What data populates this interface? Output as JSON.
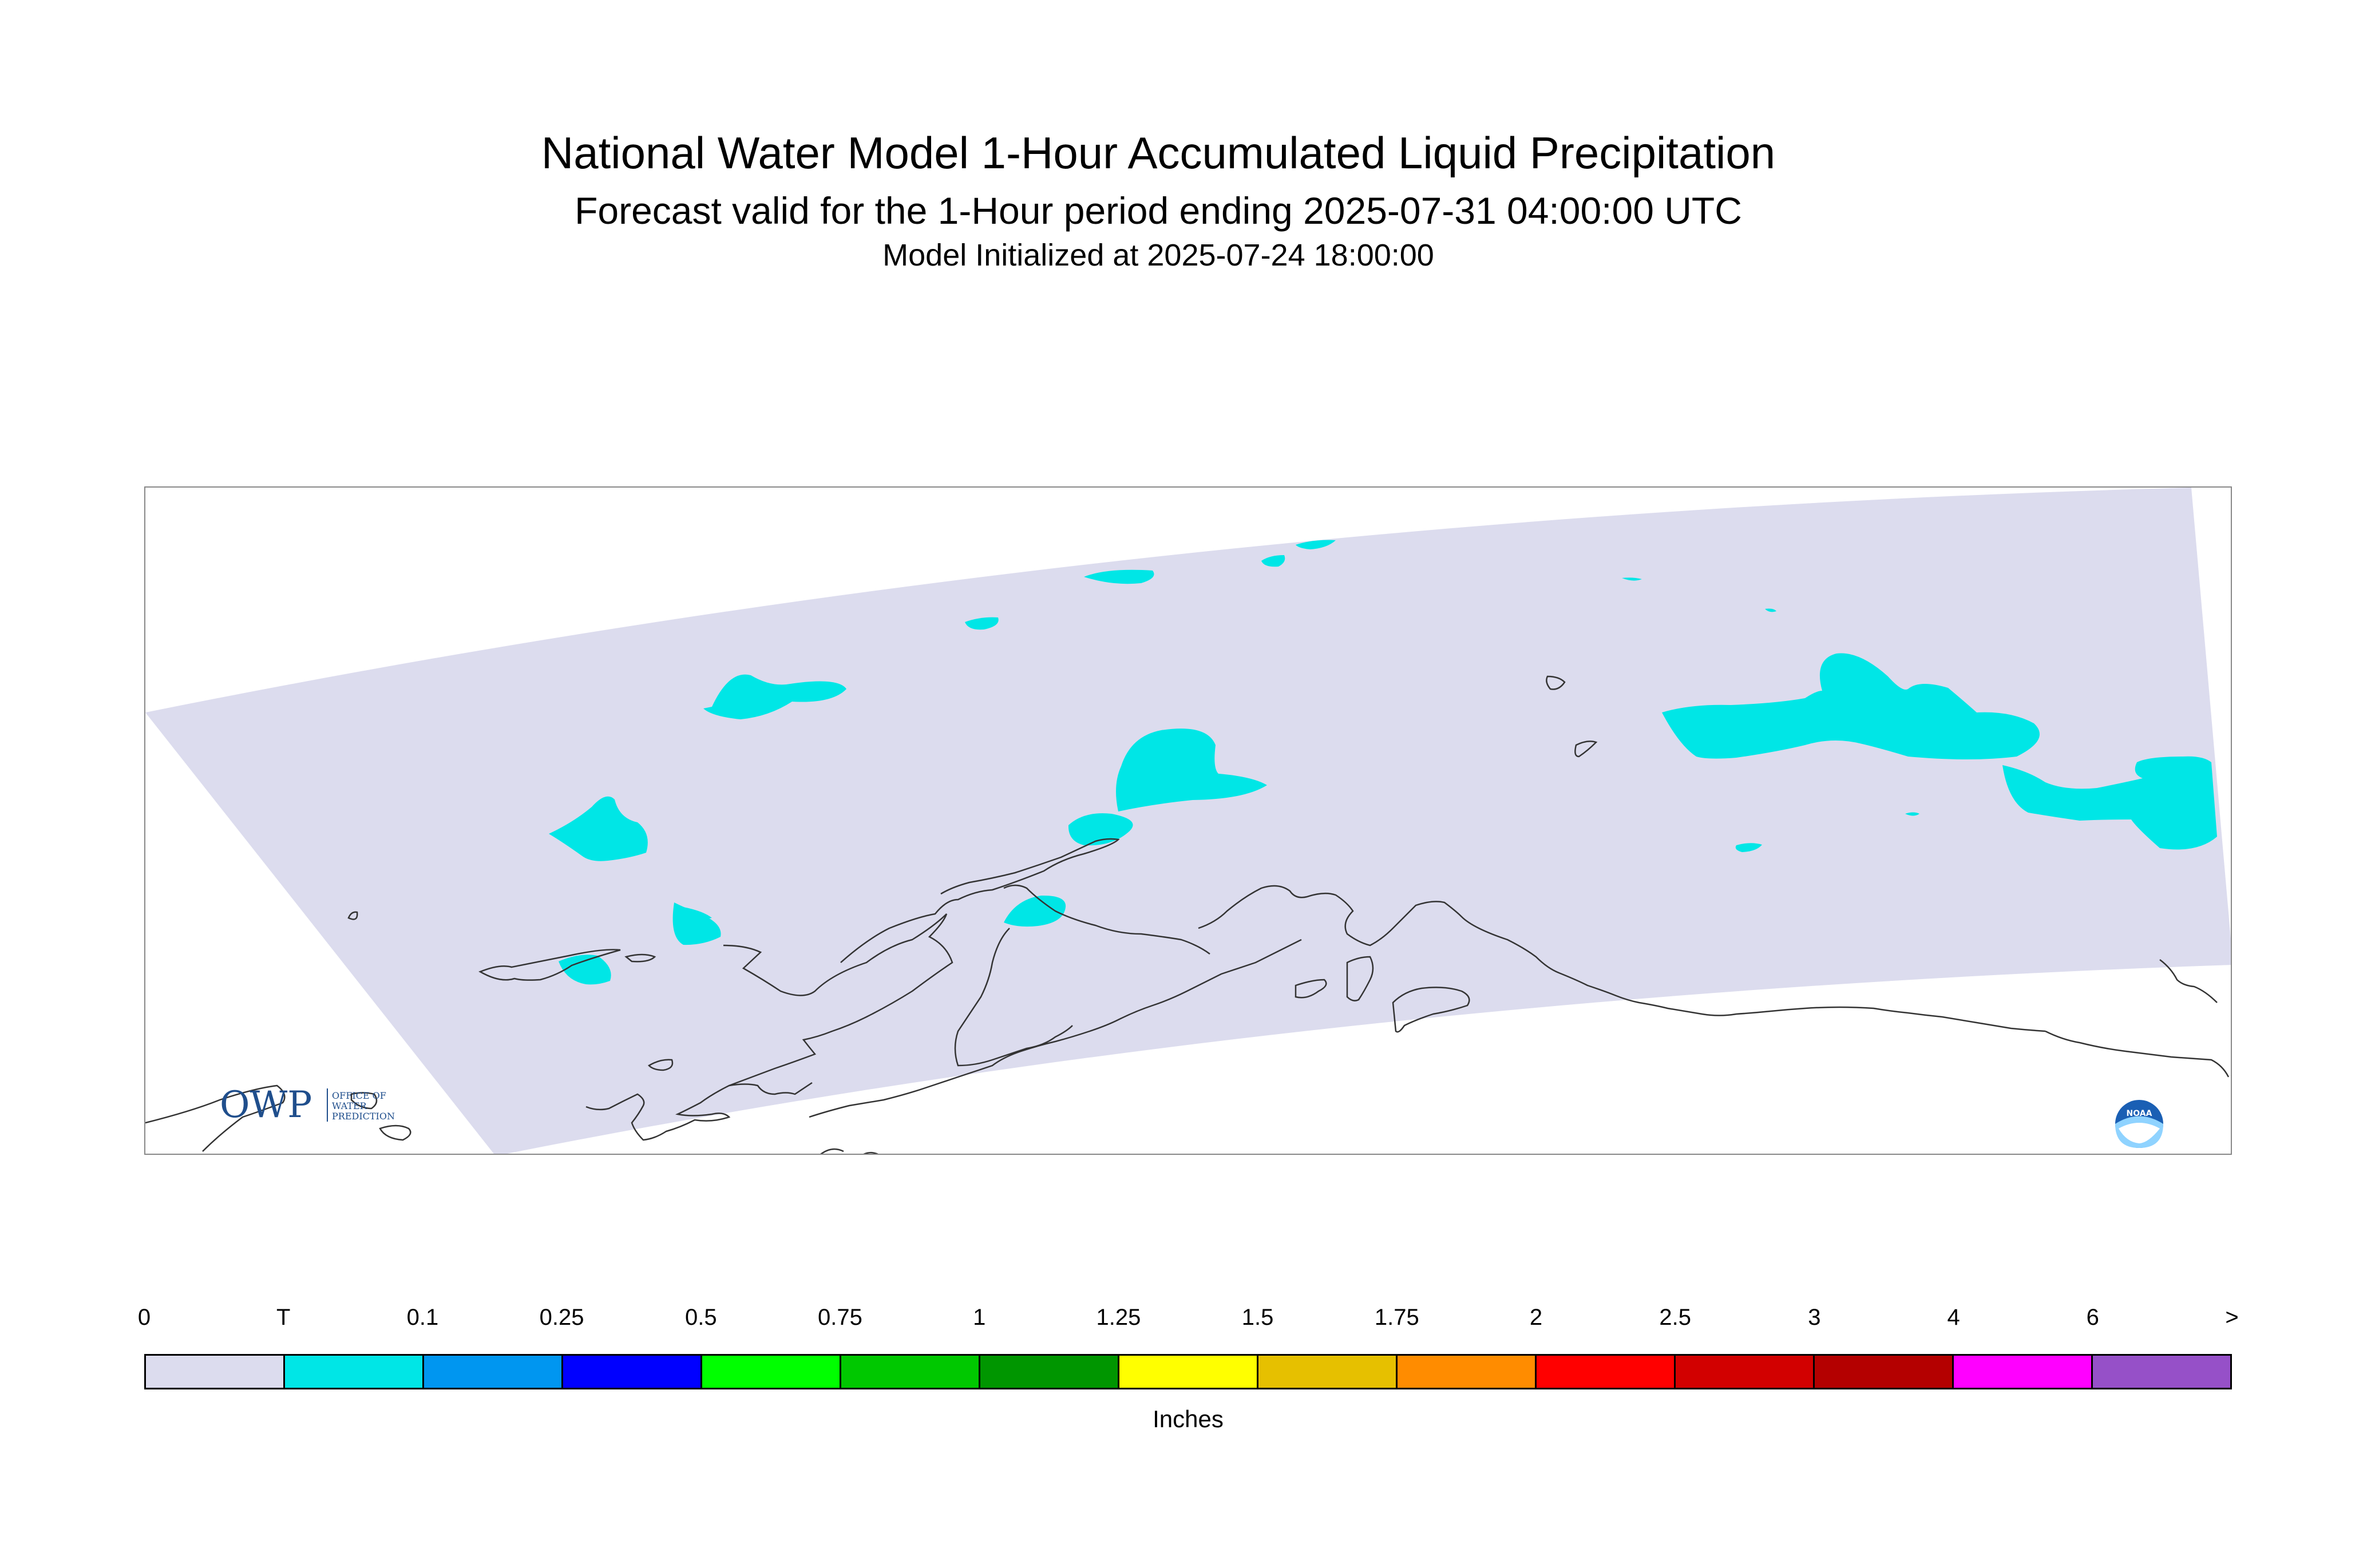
{
  "header": {
    "title": "National Water Model 1-Hour Accumulated Liquid Precipitation",
    "subtitle": "Forecast valid for the 1-Hour period ending 2025-07-31 04:00:00 UTC",
    "init_line": "Model Initialized at 2025-07-24 18:00:00"
  },
  "map": {
    "domain_color": "#dcdcee",
    "precip_color": "#00e6e6",
    "coast_color": "#333333",
    "logos": {
      "owp_logo_text": "OWP",
      "owp_logo_subtext": [
        "OFFICE OF",
        "WATER",
        "PREDICTION"
      ],
      "noaa_logo_text": "NOAA"
    }
  },
  "legend": {
    "tick_labels": [
      "0",
      "T",
      "0.1",
      "0.25",
      "0.5",
      "0.75",
      "1",
      "1.25",
      "1.5",
      "1.75",
      "2",
      "2.5",
      "3",
      "4",
      "6",
      ">"
    ],
    "bins": [
      {
        "color": "#dcdcee"
      },
      {
        "color": "#00e6e6"
      },
      {
        "color": "#0096f0"
      },
      {
        "color": "#0000ff"
      },
      {
        "color": "#00ff00"
      },
      {
        "color": "#00c800"
      },
      {
        "color": "#009600"
      },
      {
        "color": "#ffff00"
      },
      {
        "color": "#e6c000"
      },
      {
        "color": "#ff8c00"
      },
      {
        "color": "#ff0000"
      },
      {
        "color": "#d20000"
      },
      {
        "color": "#b40000"
      },
      {
        "color": "#ff00ff"
      },
      {
        "color": "#9650c8"
      }
    ],
    "units": "Inches"
  }
}
